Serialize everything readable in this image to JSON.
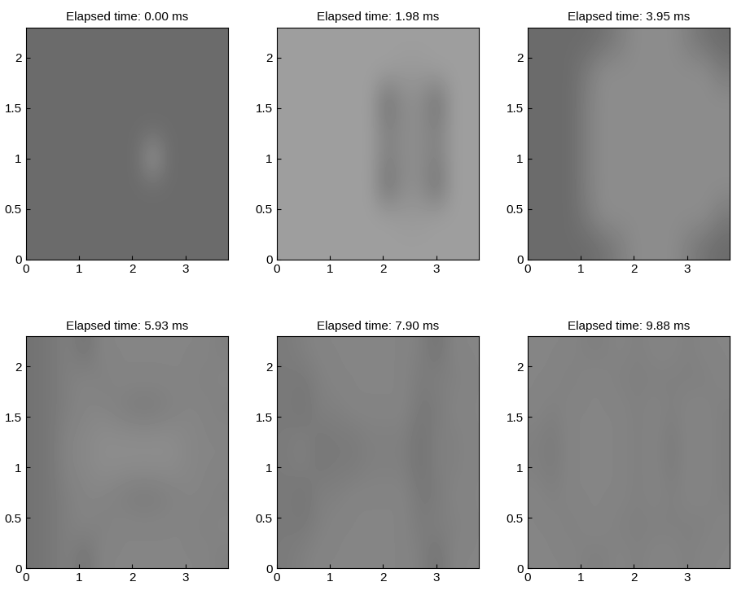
{
  "chart_data": [
    {
      "type": "heatmap",
      "title": "Elapsed time: 0.00 ms",
      "xlim": [
        0,
        3.8
      ],
      "ylim": [
        0,
        2.3
      ],
      "xticks": [
        0,
        1,
        2,
        3
      ],
      "yticks": [
        0,
        0.5,
        1,
        1.5,
        2
      ],
      "cell_range": [
        0,
        1
      ],
      "cells": [
        [
          0.42,
          0.42,
          0.42,
          0.42,
          0.42,
          0.42,
          0.42,
          0.42,
          0.42,
          0.42,
          0.42,
          0.42
        ],
        [
          0.42,
          0.42,
          0.42,
          0.42,
          0.42,
          0.42,
          0.42,
          0.42,
          0.42,
          0.42,
          0.42,
          0.42
        ],
        [
          0.42,
          0.42,
          0.42,
          0.42,
          0.42,
          0.42,
          0.42,
          0.42,
          0.42,
          0.42,
          0.42,
          0.42
        ],
        [
          0.42,
          0.42,
          0.42,
          0.42,
          0.42,
          0.42,
          0.42,
          0.6,
          0.42,
          0.42,
          0.42,
          0.42
        ],
        [
          0.42,
          0.42,
          0.42,
          0.42,
          0.42,
          0.42,
          0.42,
          0.42,
          0.42,
          0.42,
          0.42,
          0.42
        ],
        [
          0.42,
          0.42,
          0.42,
          0.42,
          0.42,
          0.42,
          0.42,
          0.42,
          0.42,
          0.42,
          0.42,
          0.42
        ],
        [
          0.42,
          0.42,
          0.42,
          0.42,
          0.42,
          0.42,
          0.42,
          0.42,
          0.42,
          0.42,
          0.42,
          0.42
        ],
        [
          0.42,
          0.42,
          0.42,
          0.42,
          0.42,
          0.42,
          0.42,
          0.42,
          0.42,
          0.42,
          0.42,
          0.42
        ]
      ]
    },
    {
      "type": "heatmap",
      "title": "Elapsed time: 1.98 ms",
      "xlim": [
        0,
        3.8
      ],
      "ylim": [
        0,
        2.3
      ],
      "xticks": [
        0,
        1,
        2,
        3
      ],
      "yticks": [
        0,
        0.5,
        1,
        1.5,
        2
      ],
      "cell_range": [
        0,
        1
      ],
      "cells": [
        [
          0.62,
          0.62,
          0.62,
          0.62,
          0.62,
          0.62,
          0.62,
          0.62,
          0.62,
          0.62,
          0.62,
          0.62
        ],
        [
          0.62,
          0.62,
          0.62,
          0.62,
          0.62,
          0.62,
          0.62,
          0.6,
          0.6,
          0.62,
          0.62,
          0.62
        ],
        [
          0.62,
          0.62,
          0.62,
          0.62,
          0.62,
          0.62,
          0.45,
          0.55,
          0.55,
          0.45,
          0.62,
          0.62
        ],
        [
          0.62,
          0.62,
          0.62,
          0.62,
          0.62,
          0.62,
          0.5,
          0.55,
          0.55,
          0.5,
          0.62,
          0.62
        ],
        [
          0.62,
          0.62,
          0.62,
          0.62,
          0.62,
          0.62,
          0.5,
          0.55,
          0.55,
          0.5,
          0.62,
          0.62
        ],
        [
          0.62,
          0.62,
          0.62,
          0.62,
          0.62,
          0.62,
          0.45,
          0.55,
          0.55,
          0.45,
          0.62,
          0.62
        ],
        [
          0.62,
          0.62,
          0.62,
          0.62,
          0.62,
          0.62,
          0.62,
          0.6,
          0.6,
          0.62,
          0.62,
          0.62
        ],
        [
          0.62,
          0.62,
          0.62,
          0.62,
          0.62,
          0.62,
          0.62,
          0.62,
          0.62,
          0.62,
          0.62,
          0.62
        ]
      ]
    },
    {
      "type": "heatmap",
      "title": "Elapsed time: 3.95 ms",
      "xlim": [
        0,
        3.8
      ],
      "ylim": [
        0,
        2.3
      ],
      "xticks": [
        0,
        1,
        2,
        3
      ],
      "yticks": [
        0,
        0.5,
        1,
        1.5,
        2
      ],
      "cell_range": [
        0,
        1
      ],
      "cells": [
        [
          0.42,
          0.42,
          0.42,
          0.42,
          0.45,
          0.5,
          0.55,
          0.55,
          0.55,
          0.5,
          0.45,
          0.42
        ],
        [
          0.42,
          0.42,
          0.42,
          0.48,
          0.55,
          0.55,
          0.55,
          0.55,
          0.55,
          0.55,
          0.55,
          0.48
        ],
        [
          0.42,
          0.42,
          0.42,
          0.5,
          0.55,
          0.55,
          0.55,
          0.55,
          0.55,
          0.55,
          0.55,
          0.55
        ],
        [
          0.42,
          0.42,
          0.42,
          0.5,
          0.55,
          0.55,
          0.55,
          0.55,
          0.55,
          0.55,
          0.55,
          0.55
        ],
        [
          0.42,
          0.42,
          0.42,
          0.5,
          0.55,
          0.55,
          0.55,
          0.55,
          0.55,
          0.55,
          0.55,
          0.55
        ],
        [
          0.42,
          0.42,
          0.42,
          0.5,
          0.55,
          0.55,
          0.55,
          0.55,
          0.55,
          0.55,
          0.55,
          0.55
        ],
        [
          0.42,
          0.42,
          0.42,
          0.48,
          0.55,
          0.55,
          0.55,
          0.55,
          0.55,
          0.55,
          0.55,
          0.48
        ],
        [
          0.42,
          0.42,
          0.42,
          0.42,
          0.45,
          0.5,
          0.55,
          0.55,
          0.55,
          0.5,
          0.45,
          0.42
        ]
      ]
    },
    {
      "type": "heatmap",
      "title": "Elapsed time: 5.93 ms",
      "xlim": [
        0,
        3.8
      ],
      "ylim": [
        0,
        2.3
      ],
      "xticks": [
        0,
        1,
        2,
        3
      ],
      "yticks": [
        0,
        0.5,
        1,
        1.5,
        2
      ],
      "cell_range": [
        0,
        1
      ],
      "cells": [
        [
          0.45,
          0.47,
          0.5,
          0.45,
          0.52,
          0.52,
          0.52,
          0.52,
          0.52,
          0.52,
          0.52,
          0.5
        ],
        [
          0.45,
          0.47,
          0.5,
          0.52,
          0.5,
          0.52,
          0.52,
          0.52,
          0.52,
          0.52,
          0.5,
          0.52
        ],
        [
          0.45,
          0.47,
          0.5,
          0.52,
          0.52,
          0.5,
          0.48,
          0.48,
          0.5,
          0.52,
          0.52,
          0.5
        ],
        [
          0.45,
          0.47,
          0.52,
          0.53,
          0.55,
          0.55,
          0.55,
          0.55,
          0.55,
          0.53,
          0.52,
          0.52
        ],
        [
          0.45,
          0.47,
          0.52,
          0.53,
          0.55,
          0.55,
          0.55,
          0.55,
          0.55,
          0.53,
          0.52,
          0.52
        ],
        [
          0.45,
          0.47,
          0.5,
          0.52,
          0.52,
          0.5,
          0.48,
          0.48,
          0.5,
          0.52,
          0.52,
          0.5
        ],
        [
          0.45,
          0.47,
          0.5,
          0.52,
          0.5,
          0.52,
          0.52,
          0.52,
          0.52,
          0.52,
          0.5,
          0.52
        ],
        [
          0.45,
          0.47,
          0.5,
          0.45,
          0.52,
          0.52,
          0.52,
          0.52,
          0.52,
          0.52,
          0.52,
          0.5
        ]
      ]
    },
    {
      "type": "heatmap",
      "title": "Elapsed time: 7.90 ms",
      "xlim": [
        0,
        3.8
      ],
      "ylim": [
        0,
        2.3
      ],
      "xticks": [
        0,
        1,
        2,
        3
      ],
      "yticks": [
        0,
        0.5,
        1,
        1.5,
        2
      ],
      "cell_range": [
        0,
        1
      ],
      "cells": [
        [
          0.48,
          0.5,
          0.52,
          0.52,
          0.52,
          0.52,
          0.52,
          0.52,
          0.5,
          0.45,
          0.52,
          0.52
        ],
        [
          0.48,
          0.47,
          0.5,
          0.52,
          0.52,
          0.52,
          0.52,
          0.52,
          0.48,
          0.5,
          0.5,
          0.52
        ],
        [
          0.48,
          0.45,
          0.5,
          0.5,
          0.52,
          0.52,
          0.52,
          0.52,
          0.47,
          0.48,
          0.52,
          0.52
        ],
        [
          0.48,
          0.5,
          0.47,
          0.48,
          0.48,
          0.5,
          0.5,
          0.5,
          0.45,
          0.5,
          0.5,
          0.52
        ],
        [
          0.48,
          0.5,
          0.47,
          0.48,
          0.48,
          0.5,
          0.5,
          0.5,
          0.45,
          0.5,
          0.5,
          0.52
        ],
        [
          0.48,
          0.45,
          0.5,
          0.5,
          0.52,
          0.52,
          0.52,
          0.52,
          0.47,
          0.48,
          0.52,
          0.52
        ],
        [
          0.48,
          0.47,
          0.5,
          0.52,
          0.52,
          0.52,
          0.52,
          0.52,
          0.48,
          0.5,
          0.5,
          0.52
        ],
        [
          0.48,
          0.5,
          0.52,
          0.52,
          0.52,
          0.52,
          0.52,
          0.52,
          0.5,
          0.45,
          0.52,
          0.52
        ]
      ]
    },
    {
      "type": "heatmap",
      "title": "Elapsed time: 9.88 ms",
      "xlim": [
        0,
        3.8
      ],
      "ylim": [
        0,
        2.3
      ],
      "xticks": [
        0,
        1,
        2,
        3
      ],
      "yticks": [
        0,
        0.5,
        1,
        1.5,
        2
      ],
      "cell_range": [
        0,
        1
      ],
      "cells": [
        [
          0.52,
          0.52,
          0.52,
          0.5,
          0.5,
          0.52,
          0.5,
          0.52,
          0.52,
          0.5,
          0.52,
          0.52
        ],
        [
          0.52,
          0.52,
          0.5,
          0.52,
          0.52,
          0.5,
          0.5,
          0.5,
          0.5,
          0.5,
          0.5,
          0.52
        ],
        [
          0.52,
          0.5,
          0.52,
          0.52,
          0.52,
          0.52,
          0.5,
          0.52,
          0.5,
          0.52,
          0.52,
          0.5
        ],
        [
          0.5,
          0.48,
          0.52,
          0.52,
          0.52,
          0.52,
          0.5,
          0.52,
          0.48,
          0.52,
          0.52,
          0.5
        ],
        [
          0.5,
          0.48,
          0.52,
          0.52,
          0.52,
          0.52,
          0.5,
          0.52,
          0.48,
          0.52,
          0.52,
          0.5
        ],
        [
          0.52,
          0.5,
          0.52,
          0.52,
          0.52,
          0.52,
          0.5,
          0.52,
          0.5,
          0.52,
          0.52,
          0.5
        ],
        [
          0.52,
          0.52,
          0.5,
          0.52,
          0.52,
          0.5,
          0.5,
          0.5,
          0.5,
          0.5,
          0.5,
          0.52
        ],
        [
          0.52,
          0.52,
          0.52,
          0.5,
          0.5,
          0.52,
          0.5,
          0.52,
          0.52,
          0.5,
          0.52,
          0.52
        ]
      ]
    }
  ]
}
